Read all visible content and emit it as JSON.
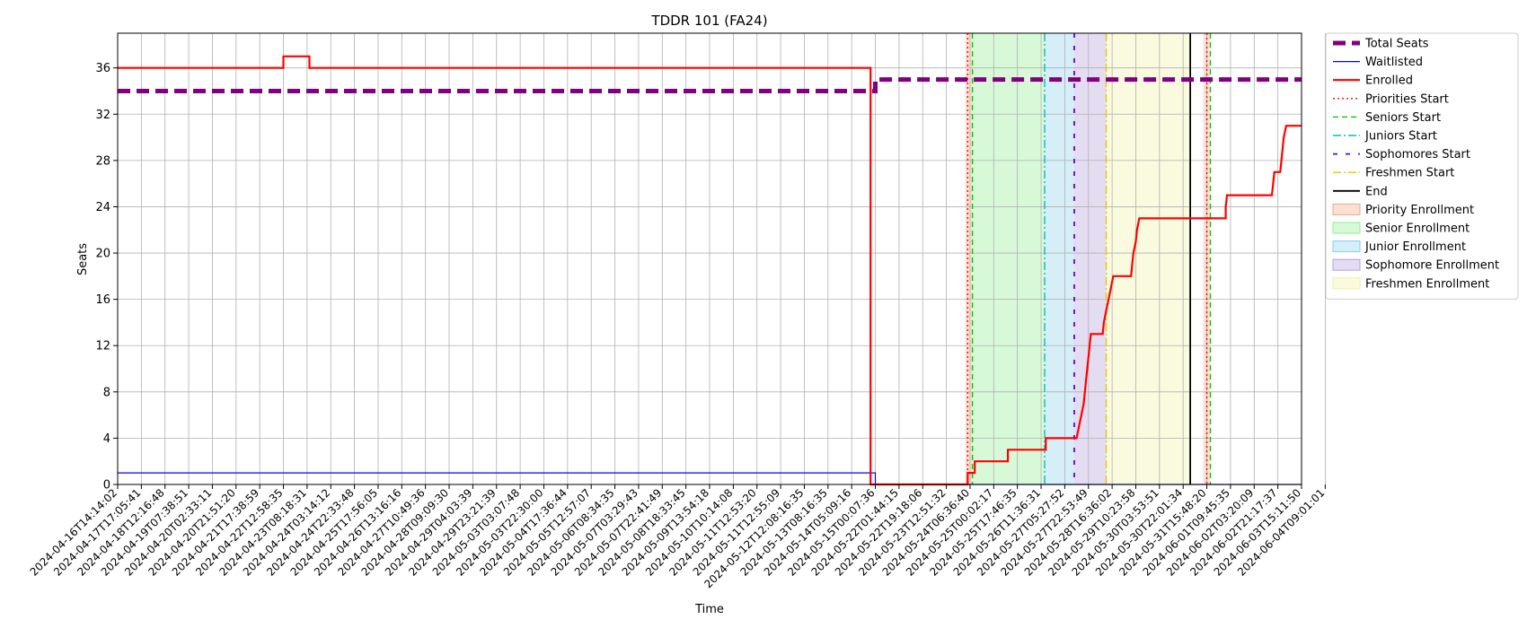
{
  "chart_data": {
    "type": "line",
    "title": "TDDR 101 (FA24)",
    "xlabel": "Time",
    "ylabel": "Seats",
    "ylim": [
      0,
      39
    ],
    "yticks": [
      0,
      4,
      8,
      12,
      16,
      20,
      24,
      28,
      32,
      36
    ],
    "xlim": [
      0,
      50
    ],
    "grid": true,
    "legend_position": "outside-right",
    "x_tick_labels": [
      "2024-04-16T14:14:02",
      "2024-04-17T17:05:41",
      "2024-04-18T12:16:48",
      "2024-04-19T07:38:51",
      "2024-04-20T02:33:11",
      "2024-04-20T21:51:20",
      "2024-04-21T17:38:59",
      "2024-04-22T12:58:35",
      "2024-04-23T08:18:31",
      "2024-04-24T03:14:12",
      "2024-04-24T22:33:48",
      "2024-04-25T17:56:05",
      "2024-04-26T13:16:16",
      "2024-04-27T10:49:36",
      "2024-04-28T09:09:30",
      "2024-04-29T04:03:39",
      "2024-04-29T23:21:39",
      "2024-05-03T03:07:48",
      "2024-05-03T22:30:00",
      "2024-05-04T17:36:44",
      "2024-05-05T12:57:07",
      "2024-05-06T08:34:35",
      "2024-05-07T03:29:43",
      "2024-05-07T22:41:49",
      "2024-05-08T18:33:45",
      "2024-05-09T13:54:18",
      "2024-05-10T10:14:08",
      "2024-05-11T12:53:20",
      "2024-05-11T12:55:09",
      "2024-05-12T12:08:16:35",
      "2024-05-13T08:16:35",
      "2024-05-14T05:09:16",
      "2024-05-15T00:07:36",
      "2024-05-22T01:44:15",
      "2024-05-22T19:18:06",
      "2024-05-23T12:51:32",
      "2024-05-24T06:36:40",
      "2024-05-25T00:02:17",
      "2024-05-25T17:46:35",
      "2024-05-26T11:36:31",
      "2024-05-27T05:27:52",
      "2024-05-27T22:53:49",
      "2024-05-28T16:36:02",
      "2024-05-29T10:23:58",
      "2024-05-30T03:53:51",
      "2024-05-30T22:01:34",
      "2024-05-31T15:48:20",
      "2024-06-01T09:45:35",
      "2024-06-02T03:20:09",
      "2024-06-02T21:17:37",
      "2024-06-03T15:11:50",
      "2024-06-04T09:01:01"
    ],
    "series": [
      {
        "name": "Total Seats",
        "color": "#800080",
        "style": "dashed-thick",
        "points": [
          [
            0,
            34
          ],
          [
            32,
            34
          ],
          [
            32,
            35
          ],
          [
            50,
            35
          ]
        ]
      },
      {
        "name": "Waitlisted",
        "color": "#0000ff",
        "style": "solid-thin",
        "points": [
          [
            0,
            1
          ],
          [
            32,
            1
          ],
          [
            32,
            0
          ],
          [
            50,
            0
          ]
        ]
      },
      {
        "name": "Enrolled",
        "color": "#ff0000",
        "style": "solid-step",
        "points": [
          [
            0,
            36
          ],
          [
            7,
            36
          ],
          [
            7,
            37
          ],
          [
            8.1,
            37
          ],
          [
            8.1,
            36
          ],
          [
            31.8,
            36
          ],
          [
            31.8,
            0
          ],
          [
            35.9,
            0
          ],
          [
            35.9,
            1
          ],
          [
            36.2,
            1
          ],
          [
            36.2,
            2
          ],
          [
            36.5,
            2
          ],
          [
            37.6,
            2
          ],
          [
            37.6,
            3
          ],
          [
            39.2,
            3
          ],
          [
            39.2,
            4
          ],
          [
            40.5,
            4
          ],
          [
            40.6,
            5
          ],
          [
            40.7,
            6
          ],
          [
            40.8,
            7
          ],
          [
            40.85,
            8
          ],
          [
            40.9,
            9
          ],
          [
            40.95,
            10
          ],
          [
            41.0,
            11
          ],
          [
            41.05,
            12
          ],
          [
            41.1,
            13
          ],
          [
            41.6,
            13
          ],
          [
            41.65,
            14
          ],
          [
            41.75,
            15
          ],
          [
            41.85,
            16
          ],
          [
            41.95,
            17
          ],
          [
            42.05,
            18
          ],
          [
            42.8,
            18
          ],
          [
            42.85,
            19
          ],
          [
            42.9,
            20
          ],
          [
            43.0,
            21
          ],
          [
            43.05,
            22
          ],
          [
            43.15,
            23
          ],
          [
            46.8,
            23
          ],
          [
            46.8,
            24
          ],
          [
            46.85,
            25
          ],
          [
            48.75,
            25
          ],
          [
            48.8,
            26
          ],
          [
            48.85,
            27
          ],
          [
            49.1,
            27
          ],
          [
            49.15,
            28
          ],
          [
            49.2,
            29
          ],
          [
            49.25,
            30
          ],
          [
            49.35,
            31
          ],
          [
            50,
            31
          ]
        ]
      }
    ],
    "vertical_lines": [
      {
        "name": "Priorities Start",
        "x": 35.9,
        "color": "#ff0000",
        "style": "dotted"
      },
      {
        "name": "Seniors Start",
        "x": 36.1,
        "color": "#00cc00",
        "style": "dashed"
      },
      {
        "name": "Juniors Start",
        "x": 39.15,
        "color": "#00bfbf",
        "style": "dashdot"
      },
      {
        "name": "Sophomores Start",
        "x": 40.4,
        "color": "#6600cc",
        "style": "loosedash"
      },
      {
        "name": "Freshmen Start",
        "x": 41.75,
        "color": "#e6c800",
        "style": "dashdot"
      },
      {
        "name": "End",
        "x": 45.3,
        "color": "#000000",
        "style": "solid"
      },
      {
        "name": "Priorities Start",
        "x": 46.0,
        "color": "#ff0000",
        "style": "dotted"
      },
      {
        "name": "Seniors Start",
        "x": 46.15,
        "color": "#00cc00",
        "style": "dashed"
      }
    ],
    "shaded_regions": [
      {
        "name": "Priority Enrollment",
        "x0": 35.8,
        "x1": 36.1,
        "color": "#f4a582"
      },
      {
        "name": "Senior Enrollment",
        "x0": 36.1,
        "x1": 39.15,
        "color": "#90ee90"
      },
      {
        "name": "Junior Enrollment",
        "x0": 39.15,
        "x1": 40.4,
        "color": "#87ceeb"
      },
      {
        "name": "Sophomore Enrollment",
        "x0": 40.4,
        "x1": 41.75,
        "color": "#b39ddb"
      },
      {
        "name": "Freshmen Enrollment",
        "x0": 41.75,
        "x1": 45.3,
        "color": "#f0f0a0"
      },
      {
        "name": "Priority Enrollment",
        "x0": 45.85,
        "x1": 46.15,
        "color": "#f4a582"
      }
    ],
    "legend": [
      {
        "label": "Total Seats",
        "kind": "line",
        "color": "#800080",
        "style": "dashed-thick"
      },
      {
        "label": "Waitlisted",
        "kind": "line",
        "color": "#0000ff",
        "style": "solid-thin"
      },
      {
        "label": "Enrolled",
        "kind": "line",
        "color": "#ff0000",
        "style": "solid"
      },
      {
        "label": "Priorities Start",
        "kind": "line",
        "color": "#ff0000",
        "style": "dotted"
      },
      {
        "label": "Seniors Start",
        "kind": "line",
        "color": "#00cc00",
        "style": "dashed"
      },
      {
        "label": "Juniors Start",
        "kind": "line",
        "color": "#00bfbf",
        "style": "dashdot"
      },
      {
        "label": "Sophomores Start",
        "kind": "line",
        "color": "#6600cc",
        "style": "loosedash"
      },
      {
        "label": "Freshmen Start",
        "kind": "line",
        "color": "#e6c800",
        "style": "dashdot"
      },
      {
        "label": "End",
        "kind": "line",
        "color": "#000000",
        "style": "solid"
      },
      {
        "label": "Priority Enrollment",
        "kind": "patch",
        "color": "#f4a582"
      },
      {
        "label": "Senior Enrollment",
        "kind": "patch",
        "color": "#90ee90"
      },
      {
        "label": "Junior Enrollment",
        "kind": "patch",
        "color": "#87ceeb"
      },
      {
        "label": "Sophomore Enrollment",
        "kind": "patch",
        "color": "#b39ddb"
      },
      {
        "label": "Freshmen Enrollment",
        "kind": "patch",
        "color": "#f0f0a0"
      }
    ]
  }
}
